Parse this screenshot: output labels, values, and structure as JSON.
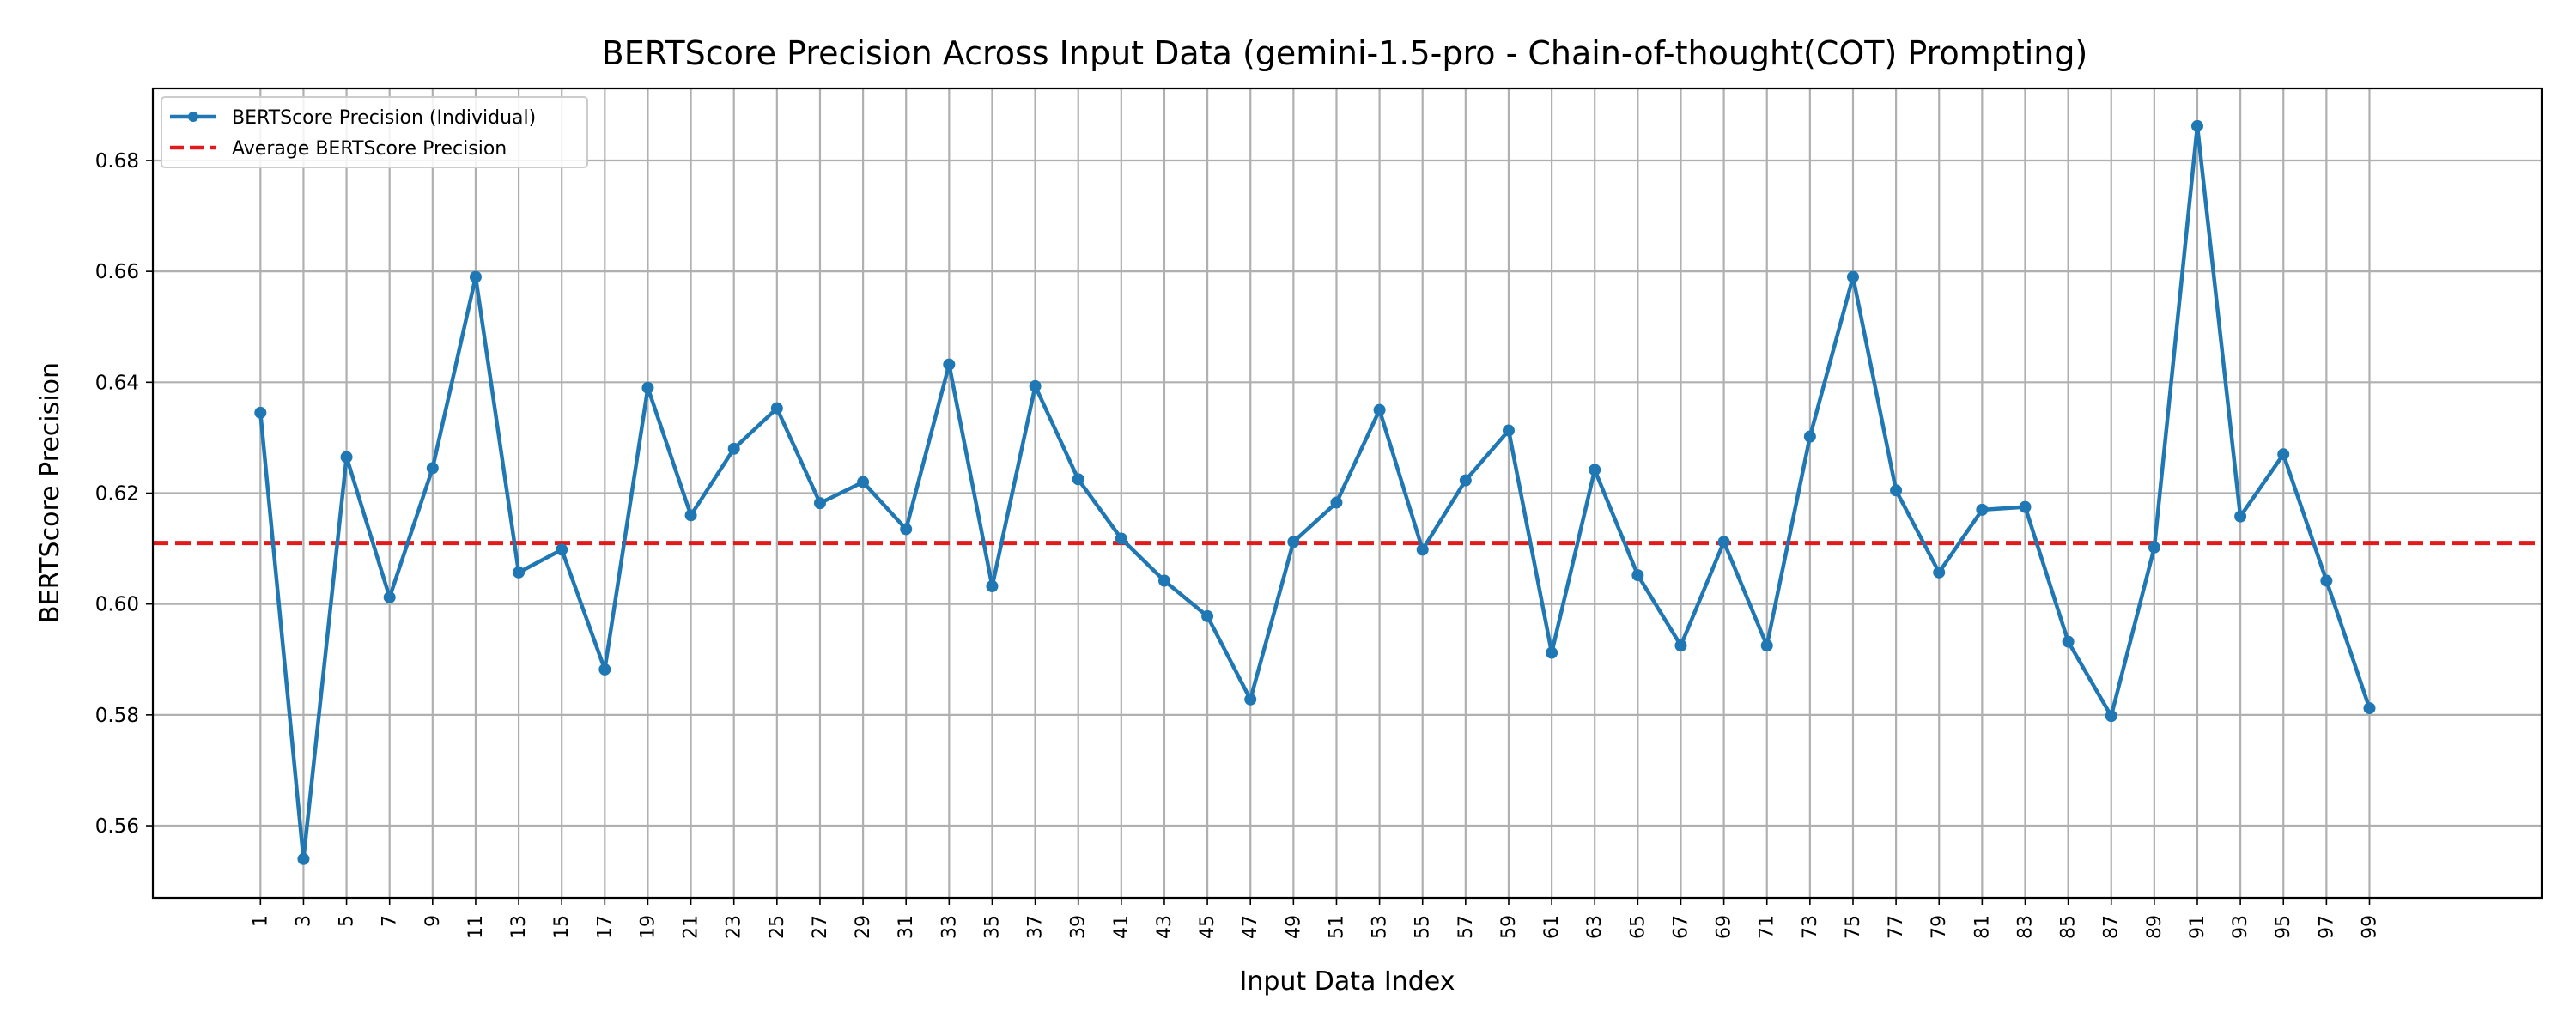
{
  "chart_data": {
    "type": "line",
    "title": "BERTScore Precision Across Input Data (gemini-1.5-pro - Chain-of-thought(COT) Prompting)",
    "xlabel": "Input Data Index",
    "ylabel": "BERTScore Precision",
    "xlim": [
      -4,
      107
    ],
    "ylim": [
      0.547,
      0.693
    ],
    "xticks": [
      1,
      3,
      5,
      7,
      9,
      11,
      13,
      15,
      17,
      19,
      21,
      23,
      25,
      27,
      29,
      31,
      33,
      35,
      37,
      39,
      41,
      43,
      45,
      47,
      49,
      51,
      53,
      55,
      57,
      59,
      61,
      63,
      65,
      67,
      69,
      71,
      73,
      75,
      77,
      79,
      81,
      83,
      85,
      87,
      89,
      91,
      93,
      95,
      97,
      99
    ],
    "yticks": [
      0.56,
      0.58,
      0.6,
      0.62,
      0.64,
      0.66,
      0.68
    ],
    "ytick_labels": [
      "0.56",
      "0.58",
      "0.60",
      "0.62",
      "0.64",
      "0.66",
      "0.68"
    ],
    "grid": true,
    "legend_position": "top-left",
    "series": [
      {
        "name": "BERTScore Precision (Individual)",
        "color": "#1f77b4",
        "style": "solid-with-markers",
        "x": [
          1,
          3,
          5,
          7,
          9,
          11,
          13,
          15,
          17,
          19,
          21,
          23,
          25,
          27,
          29,
          31,
          33,
          35,
          37,
          39,
          41,
          43,
          45,
          47,
          49,
          51,
          53,
          55,
          57,
          59,
          61,
          63,
          65,
          67,
          69,
          71,
          73,
          75,
          77,
          79,
          81,
          83,
          85,
          87,
          89,
          91,
          93,
          95,
          97,
          99
        ],
        "values": [
          0.6345,
          0.554,
          0.6265,
          0.6012,
          0.6245,
          0.659,
          0.6057,
          0.6098,
          0.5882,
          0.639,
          0.616,
          0.628,
          0.6353,
          0.6182,
          0.622,
          0.6135,
          0.6432,
          0.6032,
          0.6393,
          0.6225,
          0.6118,
          0.6042,
          0.5978,
          0.5828,
          0.6112,
          0.6183,
          0.635,
          0.6098,
          0.6223,
          0.6313,
          0.5912,
          0.6242,
          0.6052,
          0.5925,
          0.6112,
          0.5925,
          0.6302,
          0.659,
          0.6205,
          0.6057,
          0.617,
          0.6175,
          0.5932,
          0.5798,
          0.6102,
          0.6862,
          0.6158,
          0.627,
          0.6042,
          0.5812
        ]
      },
      {
        "name": "Average BERTScore Precision",
        "color": "#e31a1c",
        "style": "dashed",
        "value": 0.611
      }
    ]
  }
}
